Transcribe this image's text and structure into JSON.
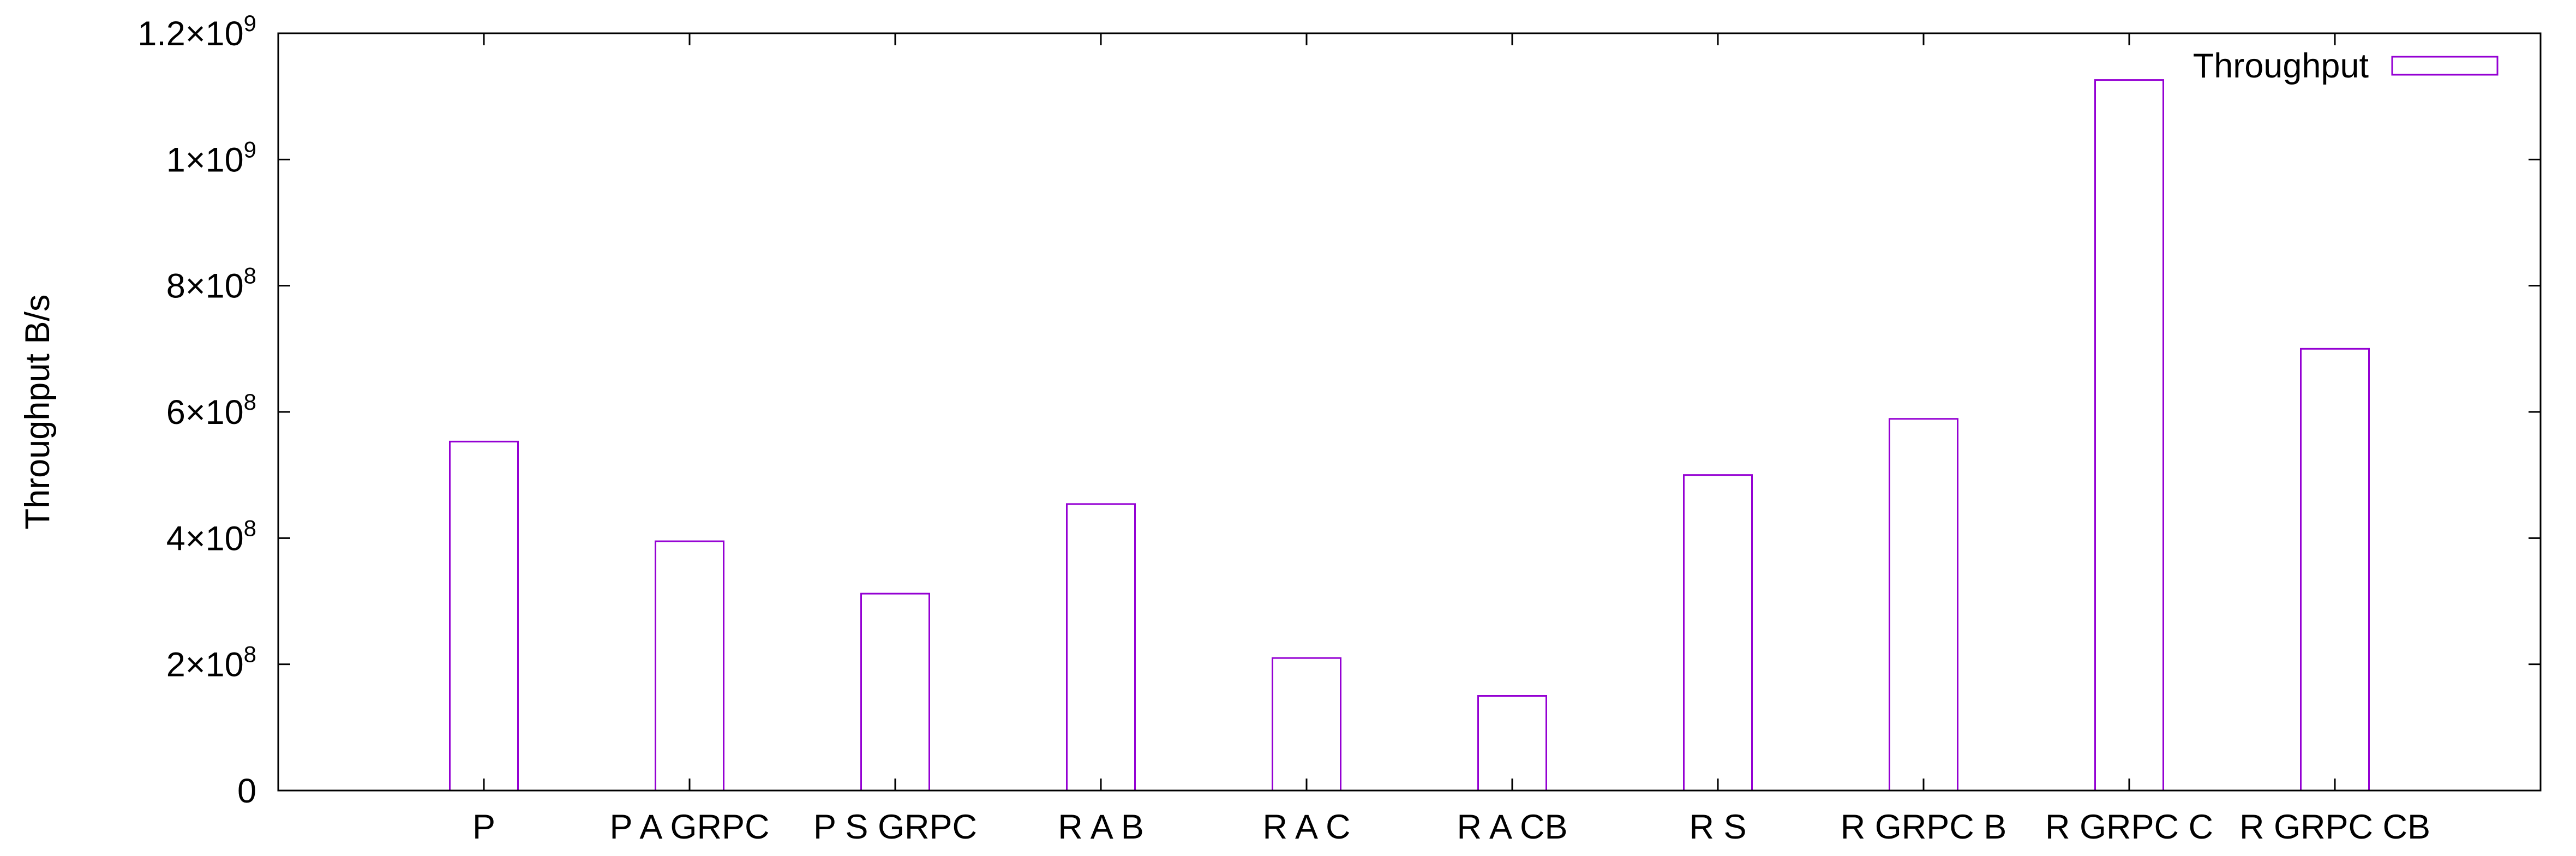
{
  "chart_data": {
    "type": "bar",
    "title": "",
    "xlabel": "",
    "ylabel": "Throughput B/s",
    "ylim": [
      0,
      1200000000
    ],
    "yticks": [
      {
        "value": 0,
        "label": "0",
        "exp": ""
      },
      {
        "value": 200000000,
        "label": "2×10",
        "exp": "8"
      },
      {
        "value": 400000000,
        "label": "4×10",
        "exp": "8"
      },
      {
        "value": 600000000,
        "label": "6×10",
        "exp": "8"
      },
      {
        "value": 800000000,
        "label": "8×10",
        "exp": "8"
      },
      {
        "value": 1000000000,
        "label": "1×10",
        "exp": "9"
      },
      {
        "value": 1200000000,
        "label": "1.2×10",
        "exp": "9"
      }
    ],
    "categories": [
      "P",
      "P A GRPC",
      "P S GRPC",
      "R A B",
      "R A C",
      "R A CB",
      "R S",
      "R GRPC B",
      "R GRPC C",
      "R GRPC CB"
    ],
    "series": [
      {
        "name": "Throughput",
        "values": [
          553000000,
          395000000,
          312000000,
          454000000,
          210000000,
          150000000,
          500000000,
          589000000,
          1126000000,
          700000000
        ]
      }
    ],
    "legend": "top-right",
    "grid": false,
    "colors": {
      "bar": "#9400d3",
      "axis": "#000000"
    }
  }
}
